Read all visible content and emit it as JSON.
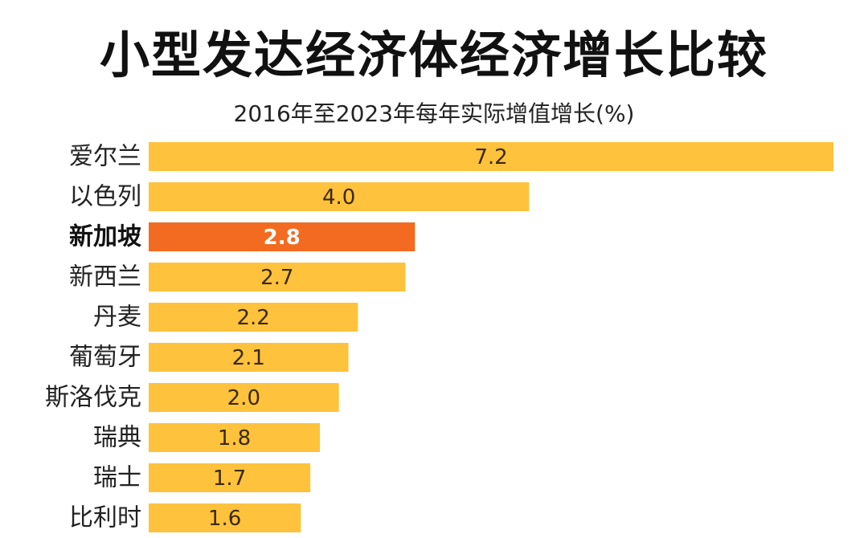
{
  "chart_data": {
    "type": "bar",
    "orientation": "horizontal",
    "title": "小型发达经济体经济增长比较",
    "subtitle": "2016年至2023年每年实际增值增长(%)",
    "categories": [
      "爱尔兰",
      "以色列",
      "新加坡",
      "新西兰",
      "丹麦",
      "葡萄牙",
      "斯洛伐克",
      "瑞典",
      "瑞士",
      "比利时"
    ],
    "values": [
      7.2,
      4.0,
      2.8,
      2.7,
      2.2,
      2.1,
      2.0,
      1.8,
      1.7,
      1.6
    ],
    "value_labels": [
      "7.2",
      "4.0",
      "2.8",
      "2.7",
      "2.2",
      "2.1",
      "2.0",
      "1.8",
      "1.7",
      "1.6"
    ],
    "highlight": "新加坡",
    "xlim": [
      0,
      7.2
    ],
    "grid": false,
    "legend": "none"
  },
  "colors": {
    "bar": "#FFC23D",
    "highlight_bar": "#F26B21",
    "background": "#FFFFFF"
  }
}
